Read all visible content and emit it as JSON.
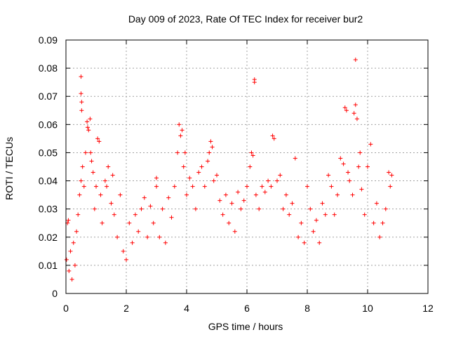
{
  "chart_data": {
    "type": "scatter",
    "title": "Day 009 of 2023, Rate Of TEC Index for receiver bur2",
    "xlabel": "GPS time / hours",
    "ylabel": "ROTI / TECUs",
    "xlim": [
      0,
      12
    ],
    "ylim": [
      0,
      0.09
    ],
    "xticks": [
      0,
      2,
      4,
      6,
      8,
      10,
      12
    ],
    "xtick_labels": [
      "0",
      "2",
      "4",
      "6",
      "8",
      "10",
      "12"
    ],
    "yticks": [
      0,
      0.01,
      0.02,
      0.03,
      0.04,
      0.05,
      0.06,
      0.07,
      0.08,
      0.09
    ],
    "ytick_labels": [
      "0",
      "0.01",
      "0.02",
      "0.03",
      "0.04",
      "0.05",
      "0.06",
      "0.07",
      "0.08",
      "0.09"
    ],
    "grid": true,
    "marker": "+",
    "marker_color": "#ff0000",
    "series": [
      {
        "points": [
          [
            0.02,
            0.012
          ],
          [
            0.05,
            0.025
          ],
          [
            0.08,
            0.026
          ],
          [
            0.1,
            0.008
          ],
          [
            0.15,
            0.015
          ],
          [
            0.2,
            0.005
          ],
          [
            0.25,
            0.018
          ],
          [
            0.3,
            0.01
          ],
          [
            0.35,
            0.022
          ],
          [
            0.4,
            0.028
          ],
          [
            0.45,
            0.035
          ],
          [
            0.5,
            0.04
          ],
          [
            0.5,
            0.077
          ],
          [
            0.5,
            0.071
          ],
          [
            0.52,
            0.068
          ],
          [
            0.52,
            0.065
          ],
          [
            0.55,
            0.045
          ],
          [
            0.6,
            0.038
          ],
          [
            0.65,
            0.05
          ],
          [
            0.7,
            0.061
          ],
          [
            0.72,
            0.059
          ],
          [
            0.75,
            0.058
          ],
          [
            0.8,
            0.062
          ],
          [
            0.82,
            0.05
          ],
          [
            0.85,
            0.047
          ],
          [
            0.9,
            0.043
          ],
          [
            0.95,
            0.03
          ],
          [
            1.0,
            0.038
          ],
          [
            1.05,
            0.055
          ],
          [
            1.1,
            0.054
          ],
          [
            1.15,
            0.035
          ],
          [
            1.2,
            0.025
          ],
          [
            1.3,
            0.04
          ],
          [
            1.35,
            0.038
          ],
          [
            1.4,
            0.045
          ],
          [
            1.5,
            0.032
          ],
          [
            1.55,
            0.042
          ],
          [
            1.6,
            0.028
          ],
          [
            1.7,
            0.02
          ],
          [
            1.8,
            0.035
          ],
          [
            1.9,
            0.015
          ],
          [
            2.0,
            0.012
          ],
          [
            2.1,
            0.025
          ],
          [
            2.2,
            0.018
          ],
          [
            2.3,
            0.028
          ],
          [
            2.4,
            0.022
          ],
          [
            2.5,
            0.03
          ],
          [
            2.6,
            0.034
          ],
          [
            2.7,
            0.02
          ],
          [
            2.8,
            0.031
          ],
          [
            2.9,
            0.025
          ],
          [
            3.0,
            0.038
          ],
          [
            3.0,
            0.041
          ],
          [
            3.1,
            0.02
          ],
          [
            3.2,
            0.03
          ],
          [
            3.3,
            0.018
          ],
          [
            3.4,
            0.034
          ],
          [
            3.5,
            0.027
          ],
          [
            3.6,
            0.038
          ],
          [
            3.7,
            0.05
          ],
          [
            3.75,
            0.06
          ],
          [
            3.8,
            0.056
          ],
          [
            3.85,
            0.058
          ],
          [
            3.9,
            0.045
          ],
          [
            3.95,
            0.05
          ],
          [
            4.0,
            0.035
          ],
          [
            4.1,
            0.041
          ],
          [
            4.2,
            0.038
          ],
          [
            4.3,
            0.03
          ],
          [
            4.4,
            0.043
          ],
          [
            4.5,
            0.045
          ],
          [
            4.6,
            0.038
          ],
          [
            4.7,
            0.047
          ],
          [
            4.75,
            0.05
          ],
          [
            4.8,
            0.054
          ],
          [
            4.85,
            0.052
          ],
          [
            4.9,
            0.04
          ],
          [
            5.0,
            0.042
          ],
          [
            5.1,
            0.033
          ],
          [
            5.2,
            0.028
          ],
          [
            5.3,
            0.035
          ],
          [
            5.4,
            0.025
          ],
          [
            5.5,
            0.032
          ],
          [
            5.6,
            0.022
          ],
          [
            5.7,
            0.036
          ],
          [
            5.8,
            0.03
          ],
          [
            5.9,
            0.033
          ],
          [
            6.0,
            0.038
          ],
          [
            6.1,
            0.045
          ],
          [
            6.15,
            0.05
          ],
          [
            6.2,
            0.049
          ],
          [
            6.25,
            0.075
          ],
          [
            6.25,
            0.076
          ],
          [
            6.3,
            0.035
          ],
          [
            6.4,
            0.03
          ],
          [
            6.5,
            0.038
          ],
          [
            6.6,
            0.036
          ],
          [
            6.7,
            0.04
          ],
          [
            6.8,
            0.038
          ],
          [
            6.85,
            0.056
          ],
          [
            6.9,
            0.055
          ],
          [
            7.0,
            0.04
          ],
          [
            7.1,
            0.042
          ],
          [
            7.2,
            0.03
          ],
          [
            7.3,
            0.035
          ],
          [
            7.4,
            0.028
          ],
          [
            7.5,
            0.032
          ],
          [
            7.6,
            0.048
          ],
          [
            7.7,
            0.02
          ],
          [
            7.8,
            0.025
          ],
          [
            7.9,
            0.018
          ],
          [
            8.0,
            0.038
          ],
          [
            8.1,
            0.03
          ],
          [
            8.2,
            0.022
          ],
          [
            8.3,
            0.026
          ],
          [
            8.4,
            0.018
          ],
          [
            8.5,
            0.032
          ],
          [
            8.6,
            0.028
          ],
          [
            8.7,
            0.042
          ],
          [
            8.8,
            0.038
          ],
          [
            8.9,
            0.028
          ],
          [
            9.0,
            0.035
          ],
          [
            9.1,
            0.048
          ],
          [
            9.2,
            0.046
          ],
          [
            9.25,
            0.066
          ],
          [
            9.3,
            0.065
          ],
          [
            9.35,
            0.043
          ],
          [
            9.4,
            0.04
          ],
          [
            9.5,
            0.035
          ],
          [
            9.55,
            0.064
          ],
          [
            9.6,
            0.083
          ],
          [
            9.6,
            0.067
          ],
          [
            9.65,
            0.062
          ],
          [
            9.7,
            0.045
          ],
          [
            9.75,
            0.05
          ],
          [
            9.8,
            0.037
          ],
          [
            9.9,
            0.028
          ],
          [
            10.0,
            0.045
          ],
          [
            10.1,
            0.053
          ],
          [
            10.2,
            0.025
          ],
          [
            10.3,
            0.032
          ],
          [
            10.4,
            0.02
          ],
          [
            10.5,
            0.025
          ],
          [
            10.6,
            0.03
          ],
          [
            10.7,
            0.043
          ],
          [
            10.75,
            0.038
          ],
          [
            10.8,
            0.042
          ]
        ]
      }
    ]
  }
}
